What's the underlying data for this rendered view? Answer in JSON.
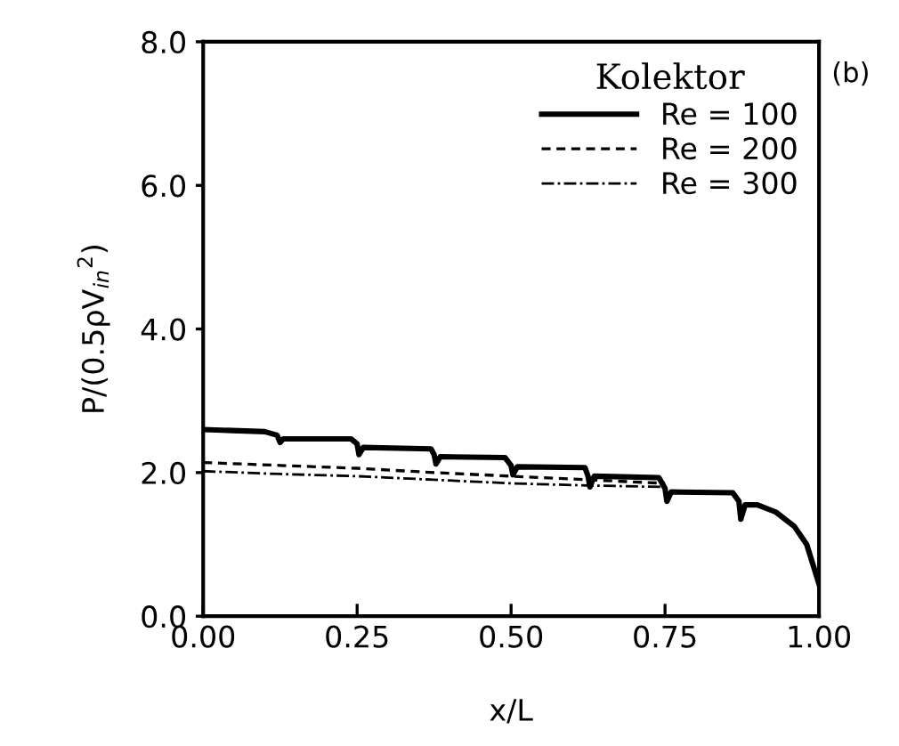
{
  "chart_data": {
    "type": "line",
    "xlabel": "x/L",
    "ylabel": "P/(0.5ρV$_{in}$$^{2}$)",
    "legend_title": "Kolektor",
    "annotations": [
      "(b)"
    ],
    "xlim": [
      0,
      1
    ],
    "ylim": [
      0,
      8
    ],
    "xticks": [
      {
        "value": 0,
        "label": "0.00"
      },
      {
        "value": 0.25,
        "label": "0.25"
      },
      {
        "value": 0.5,
        "label": "0.50"
      },
      {
        "value": 0.75,
        "label": "0.75"
      },
      {
        "value": 1,
        "label": "1.00"
      }
    ],
    "yticks": [
      {
        "value": 0,
        "label": "0.0"
      },
      {
        "value": 2,
        "label": "2.0"
      },
      {
        "value": 4,
        "label": "4.0"
      },
      {
        "value": 6,
        "label": "6.0"
      },
      {
        "value": 8,
        "label": "8.0"
      }
    ],
    "grid": false,
    "legend": "top right",
    "marker": "none",
    "series": [
      {
        "name": "Re = 100",
        "color": "#000000",
        "line_style": "solid",
        "x": [
          0,
          0.1,
          0.12,
          0.125,
          0.13,
          0.24,
          0.25,
          0.253,
          0.26,
          0.37,
          0.375,
          0.378,
          0.385,
          0.49,
          0.5,
          0.503,
          0.51,
          0.62,
          0.625,
          0.628,
          0.635,
          0.74,
          0.75,
          0.753,
          0.76,
          0.86,
          0.87,
          0.873,
          0.88,
          0.9,
          0.93,
          0.96,
          0.98,
          1.0
        ],
        "values": [
          2.6,
          2.57,
          2.52,
          2.42,
          2.47,
          2.47,
          2.4,
          2.25,
          2.35,
          2.33,
          2.25,
          2.12,
          2.22,
          2.21,
          2.1,
          1.97,
          2.08,
          2.07,
          1.95,
          1.8,
          1.95,
          1.93,
          1.78,
          1.6,
          1.73,
          1.72,
          1.6,
          1.35,
          1.55,
          1.55,
          1.45,
          1.25,
          1.0,
          0.45
        ]
      },
      {
        "name": "Re = 200",
        "color": "#000000",
        "line_style": "dashed",
        "x": [
          0,
          0.125,
          0.25,
          0.375,
          0.5,
          0.625,
          0.75
        ],
        "values": [
          2.14,
          2.1,
          2.06,
          2.0,
          1.95,
          1.9,
          1.85
        ]
      },
      {
        "name": "Re = 300",
        "color": "#000000",
        "line_style": "dashdot",
        "x": [
          0,
          0.125,
          0.25,
          0.375,
          0.5,
          0.625,
          0.75
        ],
        "values": [
          2.02,
          1.98,
          1.95,
          1.9,
          1.85,
          1.82,
          1.8
        ]
      }
    ]
  }
}
